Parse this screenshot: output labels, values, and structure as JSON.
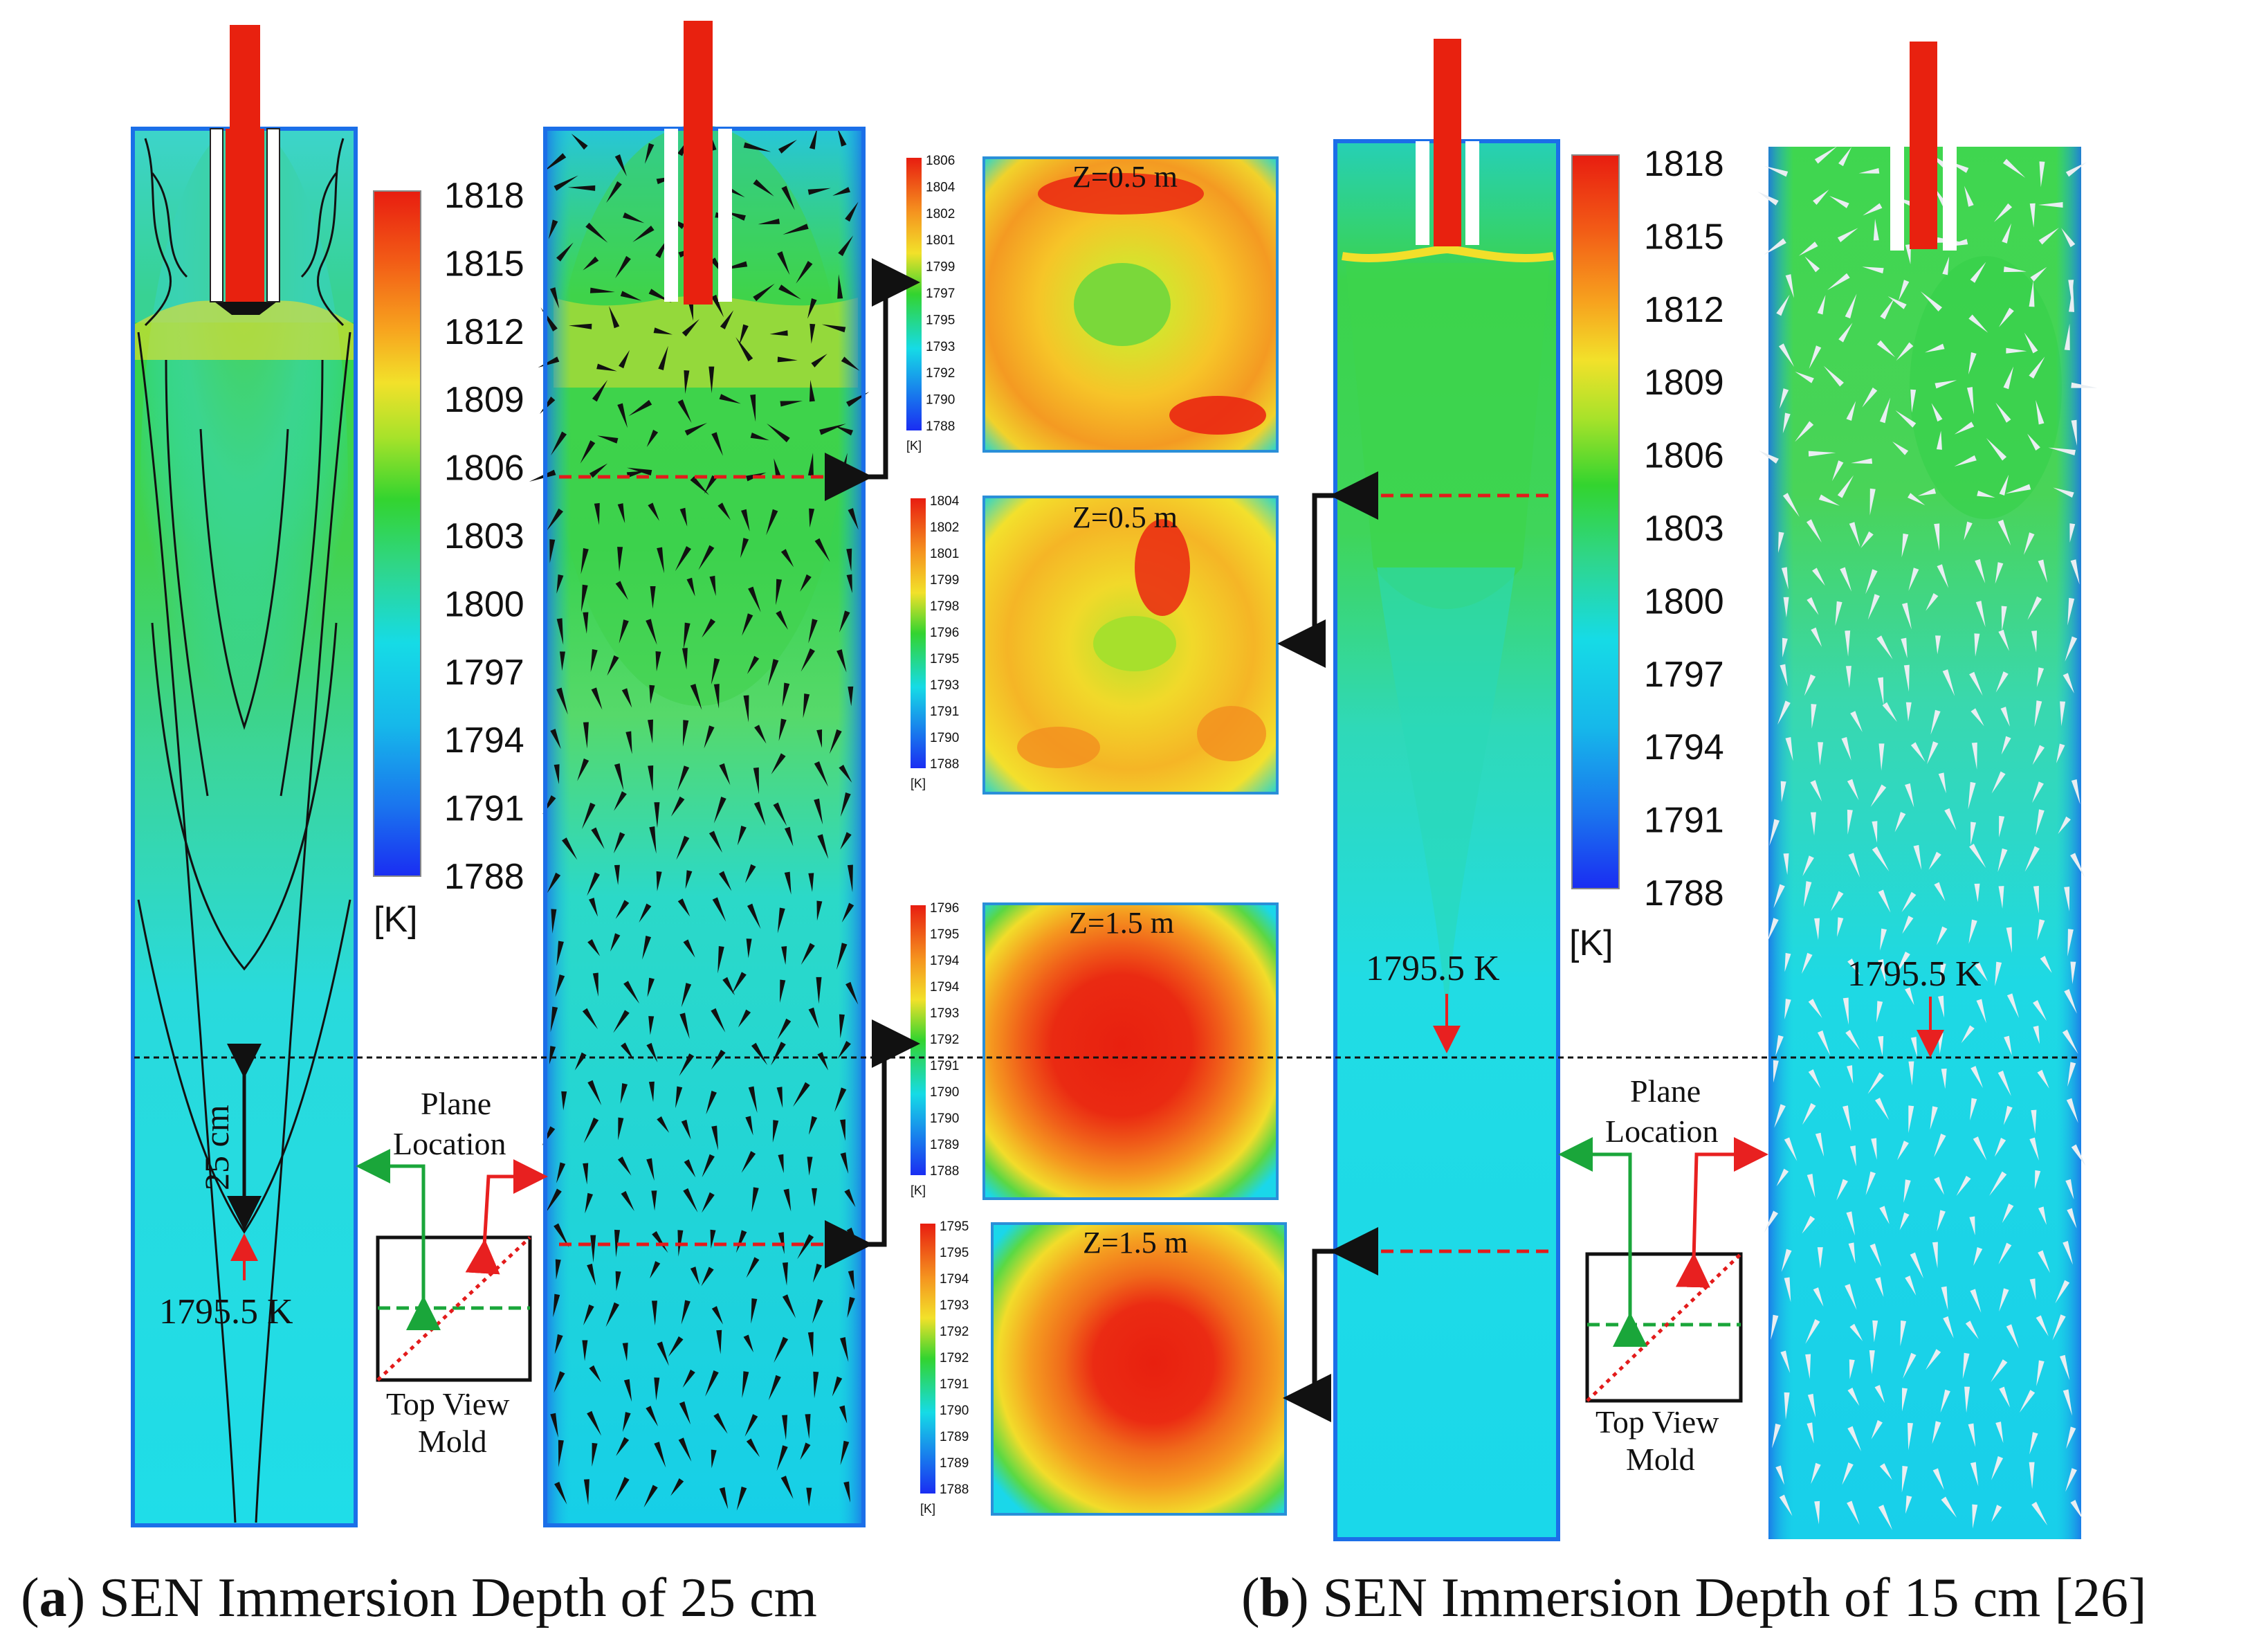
{
  "colors": {
    "red": "#e8210f",
    "orange": "#f4861a",
    "yellow": "#f2e12a",
    "green": "#33d42f",
    "cyan": "#16dbe6",
    "blue": "#1940f0",
    "connector_green": "#1aa63a",
    "connector_red": "#e82020",
    "dashed_red": "#e31b1b"
  },
  "colorbar_main": {
    "ticks": [
      "1818",
      "1815",
      "1812",
      "1809",
      "1806",
      "1803",
      "1800",
      "1797",
      "1794",
      "1791",
      "1788"
    ],
    "unit": "[K]"
  },
  "mini_bars": [
    {
      "ticks": [
        "1806",
        "1804",
        "1802",
        "1801",
        "1799",
        "1797",
        "1795",
        "1793",
        "1792",
        "1790",
        "1788"
      ],
      "unit": "[K]"
    },
    {
      "ticks": [
        "1804",
        "1802",
        "1801",
        "1799",
        "1798",
        "1796",
        "1795",
        "1793",
        "1791",
        "1790",
        "1788"
      ],
      "unit": "[K]"
    },
    {
      "ticks": [
        "1796",
        "1795",
        "1794",
        "1794",
        "1793",
        "1792",
        "1791",
        "1790",
        "1790",
        "1789",
        "1788"
      ],
      "unit": "[K]"
    },
    {
      "ticks": [
        "1795",
        "1795",
        "1794",
        "1793",
        "1792",
        "1792",
        "1791",
        "1790",
        "1789",
        "1789",
        "1788"
      ],
      "unit": "[K]"
    }
  ],
  "slices": [
    {
      "label": "Z=0.5 m"
    },
    {
      "label": "Z=0.5 m"
    },
    {
      "label": "Z=1.5 m"
    },
    {
      "label": "Z=1.5 m"
    }
  ],
  "panel_a": {
    "distance_label": "25 cm",
    "temp_label": "1795.5 K",
    "plane_label_1": "Plane",
    "plane_label_2": "Location",
    "topview_1": "Top View",
    "topview_2": "Mold",
    "caption_letter": "a",
    "caption_text": " SEN Immersion Depth of 25 cm"
  },
  "panel_b": {
    "temp_label_contour": "1795.5 K",
    "temp_label_vector": "1795.5 K",
    "plane_label_1": "Plane",
    "plane_label_2": "Location",
    "topview_1": "Top View",
    "topview_2": "Mold",
    "caption_letter": "b",
    "caption_text": " SEN Immersion Depth of 15 cm [26]"
  }
}
